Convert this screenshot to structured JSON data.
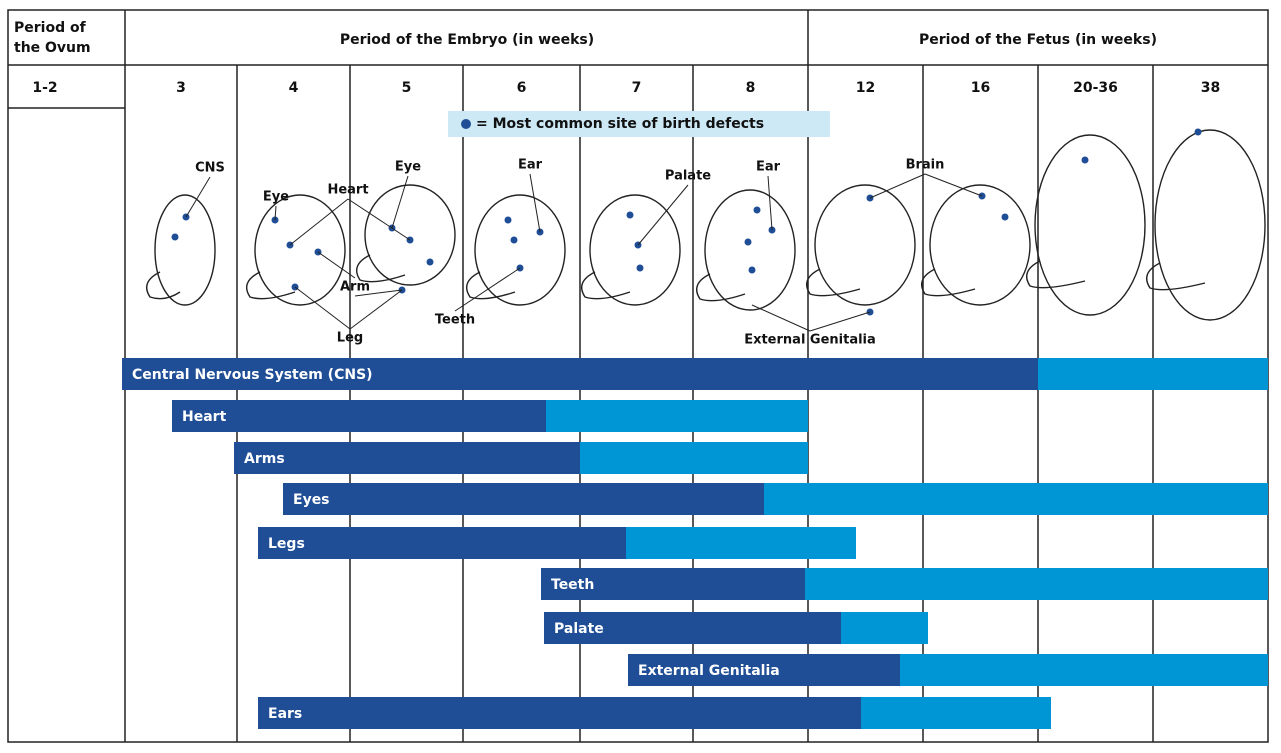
{
  "header": {
    "ovum": [
      "Period of",
      "the Ovum"
    ],
    "embryo": "Period of the Embryo (in weeks)",
    "fetus": "Period of the Fetus (in weeks)"
  },
  "weeks": [
    "1-2",
    "3",
    "4",
    "5",
    "6",
    "7",
    "8",
    "12",
    "16",
    "20-36",
    "38"
  ],
  "legend": "= Most common site of birth defects",
  "labels": [
    "CNS",
    "Eye",
    "Heart",
    "Eye",
    "Ear",
    "Palate",
    "Ear",
    "Brain",
    "Arm",
    "Leg",
    "Teeth",
    "External Genitalia"
  ],
  "bars": [
    "Central Nervous System (CNS)",
    "Heart",
    "Arms",
    "Eyes",
    "Legs",
    "Teeth",
    "Palate",
    "External Genitalia",
    "Ears"
  ]
}
